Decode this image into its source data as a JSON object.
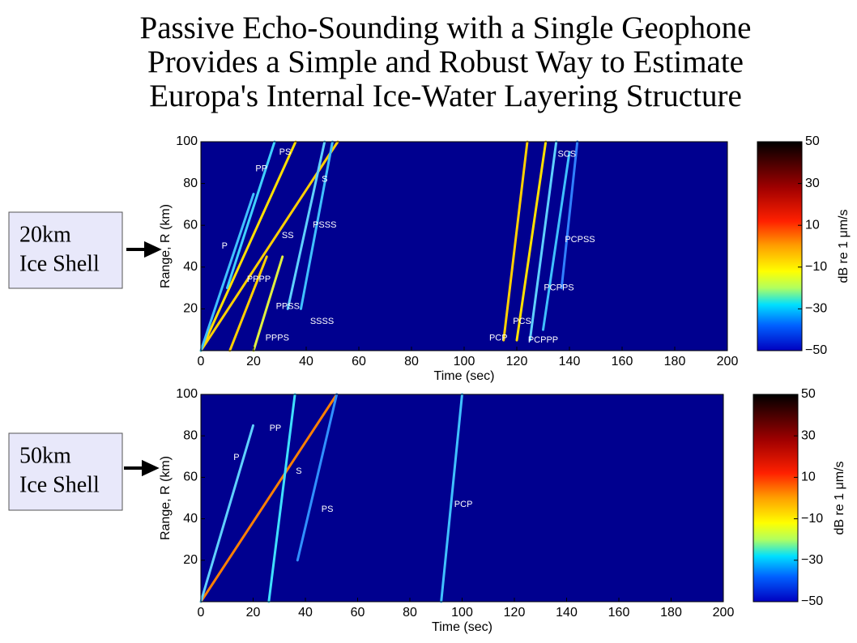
{
  "title": [
    "Passive Echo-Sounding with a Single Geophone",
    "Provides a Simple and  Robust Way to Estimate",
    "Europa's Internal Ice-Water Layering Structure"
  ],
  "side_labels": [
    [
      "20km",
      "Ice Shell"
    ],
    [
      "50km",
      "Ice Shell"
    ]
  ],
  "chart_data": [
    {
      "type": "heatmap",
      "xlabel": "Time (sec)",
      "ylabel": "Range, R (km)",
      "background": "#00008f",
      "xlim": [
        0,
        200
      ],
      "ylim": [
        0,
        100
      ],
      "xticks": [
        0,
        20,
        40,
        60,
        80,
        100,
        120,
        140,
        160,
        180,
        200
      ],
      "yticks": [
        20,
        40,
        60,
        80,
        100
      ],
      "colorbar": {
        "label": "dB re 1 μm/s",
        "lim": [
          -50,
          50
        ],
        "ticks": [
          50,
          30,
          10,
          {
            "value": -10,
            "label": "−10"
          },
          {
            "value": -30,
            "label": "−30"
          },
          {
            "value": -50,
            "label": "−50"
          }
        ]
      },
      "series": [
        {
          "color": "#ffd000",
          "x": [
            0,
            52
          ],
          "values": [
            0,
            100
          ]
        },
        {
          "color": "#ffe000",
          "x": [
            0,
            36
          ],
          "values": [
            0,
            100
          ]
        },
        {
          "color": "#40c0ff",
          "x": [
            0,
            20
          ],
          "values": [
            0,
            75
          ]
        },
        {
          "color": "#40d0ff",
          "x": [
            10,
            28
          ],
          "values": [
            30,
            100
          ]
        },
        {
          "color": "#ffd000",
          "x": [
            11,
            25
          ],
          "values": [
            0,
            45
          ]
        },
        {
          "color": "#e0f040",
          "x": [
            20,
            31
          ],
          "values": [
            0,
            45
          ]
        },
        {
          "color": "#60d0ff",
          "x": [
            33,
            47
          ],
          "values": [
            20,
            100
          ]
        },
        {
          "color": "#40c0ff",
          "x": [
            38,
            50
          ],
          "values": [
            20,
            100
          ]
        },
        {
          "color": "#ffd000",
          "x": [
            115,
            124
          ],
          "values": [
            5,
            100
          ]
        },
        {
          "color": "#ffe000",
          "x": [
            120,
            131
          ],
          "values": [
            5,
            100
          ]
        },
        {
          "color": "#60d0ff",
          "x": [
            125,
            135
          ],
          "values": [
            5,
            100
          ]
        },
        {
          "color": "#40c0ff",
          "x": [
            130,
            140
          ],
          "values": [
            10,
            95
          ]
        },
        {
          "color": "#3080ff",
          "x": [
            137,
            143
          ],
          "values": [
            30,
            100
          ]
        }
      ],
      "annotations": [
        {
          "text": "P",
          "x": 9,
          "y": 50
        },
        {
          "text": "PP",
          "x": 23,
          "y": 87
        },
        {
          "text": "PS",
          "x": 32,
          "y": 95
        },
        {
          "text": "S",
          "x": 47,
          "y": 82
        },
        {
          "text": "SS",
          "x": 33,
          "y": 55
        },
        {
          "text": "PSSS",
          "x": 47,
          "y": 60
        },
        {
          "text": "PPPP",
          "x": 22,
          "y": 34
        },
        {
          "text": "PPSS",
          "x": 33,
          "y": 21
        },
        {
          "text": "SSSS",
          "x": 46,
          "y": 14
        },
        {
          "text": "PPPS",
          "x": 29,
          "y": 6
        },
        {
          "text": "PCP",
          "x": 113,
          "y": 6
        },
        {
          "text": "PCS",
          "x": 122,
          "y": 14
        },
        {
          "text": "PCPPP",
          "x": 130,
          "y": 5
        },
        {
          "text": "PCPPS",
          "x": 136,
          "y": 30
        },
        {
          "text": "PCPSS",
          "x": 144,
          "y": 53
        },
        {
          "text": "SCS",
          "x": 139,
          "y": 94
        }
      ]
    },
    {
      "type": "heatmap",
      "xlabel": "Time (sec)",
      "ylabel": "Range, R (km)",
      "background": "#00008f",
      "xlim": [
        0,
        200
      ],
      "ylim": [
        0,
        100
      ],
      "xticks": [
        0,
        20,
        40,
        60,
        80,
        100,
        120,
        140,
        160,
        180,
        200
      ],
      "yticks": [
        20,
        40,
        60,
        80,
        100
      ],
      "colorbar": {
        "label": "dB re 1 μm/s",
        "lim": [
          -50,
          50
        ],
        "ticks": [
          50,
          30,
          10,
          {
            "value": -10,
            "label": "−10"
          },
          {
            "value": -30,
            "label": "−30"
          },
          {
            "value": -50,
            "label": "−50"
          }
        ]
      },
      "series": [
        {
          "color": "#ff8000",
          "x": [
            0,
            52
          ],
          "values": [
            0,
            100
          ]
        },
        {
          "color": "#60d0ff",
          "x": [
            0,
            20
          ],
          "values": [
            0,
            85
          ]
        },
        {
          "color": "#40e0ff",
          "x": [
            26,
            36
          ],
          "values": [
            0,
            100
          ]
        },
        {
          "color": "#3090ff",
          "x": [
            37,
            52
          ],
          "values": [
            20,
            100
          ]
        },
        {
          "color": "#40c0ff",
          "x": [
            92,
            100
          ],
          "values": [
            0,
            100
          ]
        }
      ],
      "annotations": [
        {
          "text": "P",
          "x": 13.6,
          "y": 69.5
        },
        {
          "text": "PP",
          "x": 28.5,
          "y": 83.6
        },
        {
          "text": "S",
          "x": 37.5,
          "y": 62.9
        },
        {
          "text": "PS",
          "x": 48.4,
          "y": 44.5
        },
        {
          "text": "PCP",
          "x": 100.5,
          "y": 46.9
        }
      ]
    }
  ]
}
